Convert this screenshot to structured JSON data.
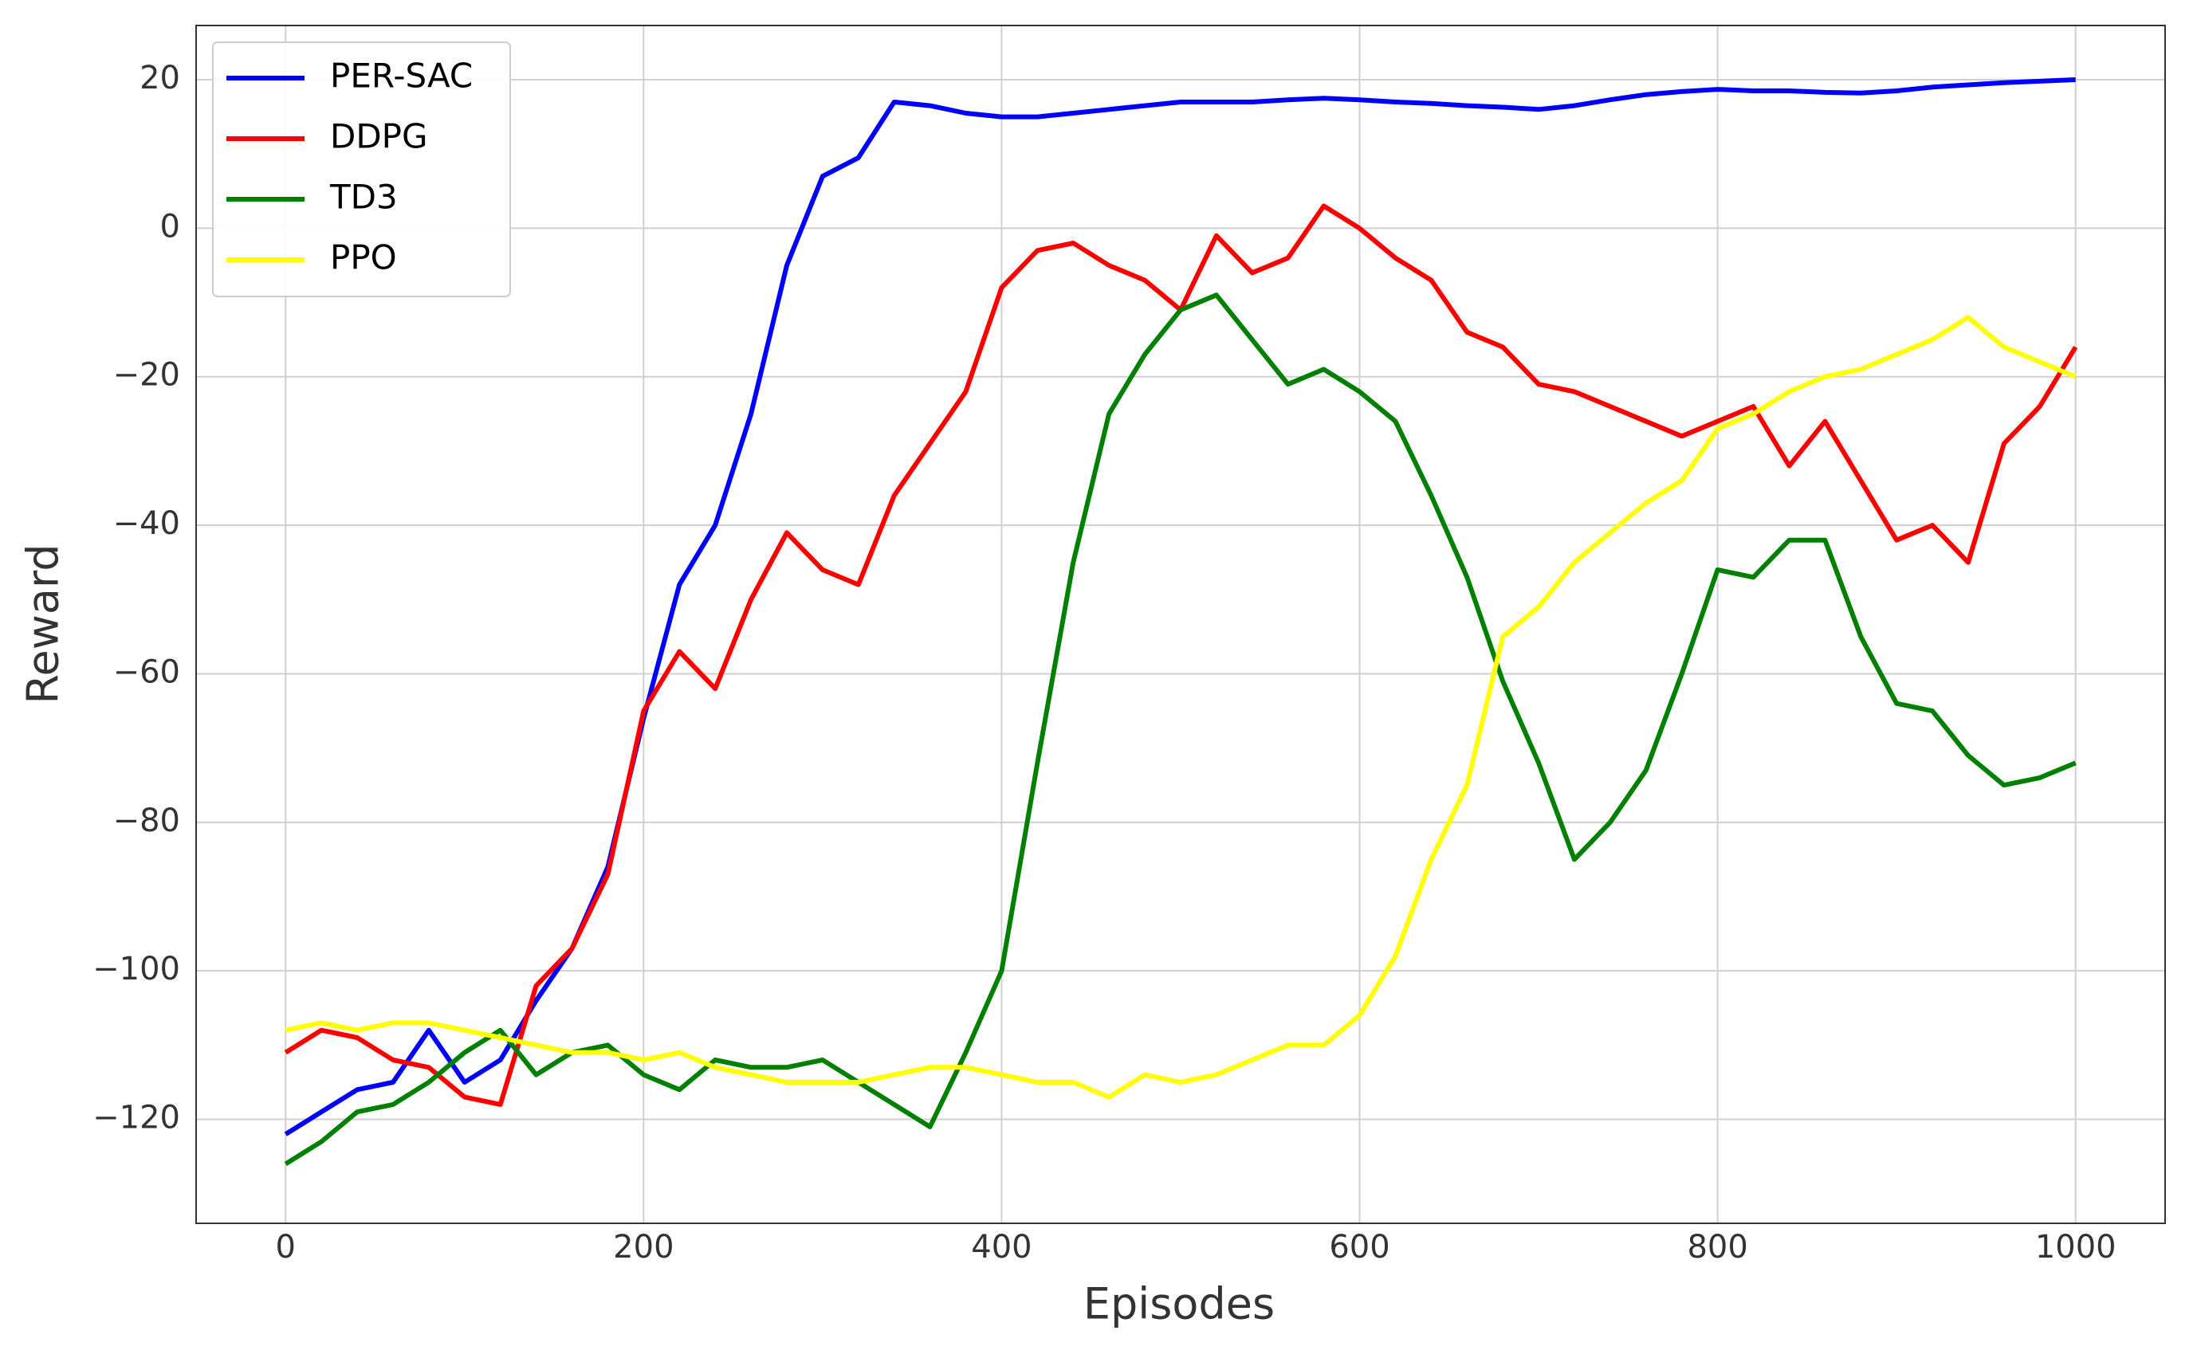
{
  "chart_data": {
    "type": "line",
    "x_label": "Episodes",
    "y_label": "Reward",
    "x": [
      0,
      20,
      40,
      60,
      80,
      100,
      120,
      140,
      160,
      180,
      200,
      220,
      240,
      260,
      280,
      300,
      320,
      340,
      360,
      380,
      400,
      420,
      440,
      460,
      480,
      500,
      520,
      540,
      560,
      580,
      600,
      620,
      640,
      660,
      680,
      700,
      720,
      740,
      760,
      780,
      800,
      820,
      840,
      860,
      880,
      900,
      920,
      940,
      960,
      980,
      1000
    ],
    "series": [
      {
        "name": "PER-SAC",
        "color": "#0000ff",
        "values": [
          -122,
          -119,
          -116,
          -115,
          -108,
          -115,
          -112,
          -104,
          -97,
          -86,
          -66,
          -48,
          -40,
          -25,
          -5,
          7,
          9.5,
          17,
          16.5,
          15.5,
          15,
          15,
          15.5,
          16,
          16.5,
          17,
          17,
          17,
          17.3,
          17.5,
          17.3,
          17,
          16.8,
          16.5,
          16.3,
          16,
          16.5,
          17.3,
          18,
          18.4,
          18.7,
          18.5,
          18.5,
          18.3,
          18.2,
          18.5,
          19,
          19.3,
          19.6,
          19.8,
          20
        ]
      },
      {
        "name": "DDPG",
        "color": "#ff0000",
        "values": [
          -111,
          -108,
          -109,
          -112,
          -113,
          -117,
          -118,
          -102,
          -97,
          -87,
          -65,
          -57,
          -62,
          -50,
          -41,
          -46,
          -48,
          -36,
          -29,
          -22,
          -8,
          -3,
          -2,
          -5,
          -7,
          -11,
          -1,
          -6,
          -4,
          3,
          0,
          -4,
          -7,
          -14,
          -16,
          -21,
          -22,
          -24,
          -26,
          -28,
          -26,
          -24,
          -32,
          -26,
          -34,
          -42,
          -40,
          -45,
          -29,
          -24,
          -16
        ]
      },
      {
        "name": "TD3",
        "color": "#008000",
        "values": [
          -126,
          -123,
          -119,
          -118,
          -115,
          -111,
          -108,
          -114,
          -111,
          -110,
          -114,
          -116,
          -112,
          -113,
          -113,
          -112,
          -115,
          -118,
          -121,
          -111,
          -100,
          -72,
          -45,
          -25,
          -17,
          -11,
          -9,
          -15,
          -21,
          -19,
          -22,
          -26,
          -36,
          -47,
          -61,
          -72,
          -85,
          -80,
          -73,
          -60,
          -46,
          -47,
          -42,
          -42,
          -55,
          -64,
          -65,
          -71,
          -75,
          -74,
          -72
        ]
      },
      {
        "name": "PPO",
        "color": "#ffff00",
        "values": [
          -108,
          -107,
          -108,
          -107,
          -107,
          -108,
          -109,
          -110,
          -111,
          -111,
          -112,
          -111,
          -113,
          -114,
          -115,
          -115,
          -115,
          -114,
          -113,
          -113,
          -114,
          -115,
          -115,
          -117,
          -114,
          -115,
          -114,
          -112,
          -110,
          -110,
          -106,
          -98,
          -85,
          -75,
          -55,
          -51,
          -45,
          -41,
          -37,
          -34,
          -27,
          -25,
          -22,
          -20,
          -19,
          -17,
          -15,
          -12,
          -16,
          -18,
          -20
        ]
      }
    ],
    "xlim": [
      -50,
      1050
    ],
    "ylim": [
      -134,
      27.3
    ],
    "xticks": [
      0,
      200,
      400,
      600,
      800,
      1000
    ],
    "yticks": [
      {
        "value": -120,
        "label": "−120"
      },
      {
        "value": -100,
        "label": "−100"
      },
      {
        "value": -80,
        "label": "−80"
      },
      {
        "value": -60,
        "label": "−60"
      },
      {
        "value": -40,
        "label": "−40"
      },
      {
        "value": -20,
        "label": "−20"
      },
      0,
      20
    ],
    "grid": true,
    "legend": "upper left"
  }
}
